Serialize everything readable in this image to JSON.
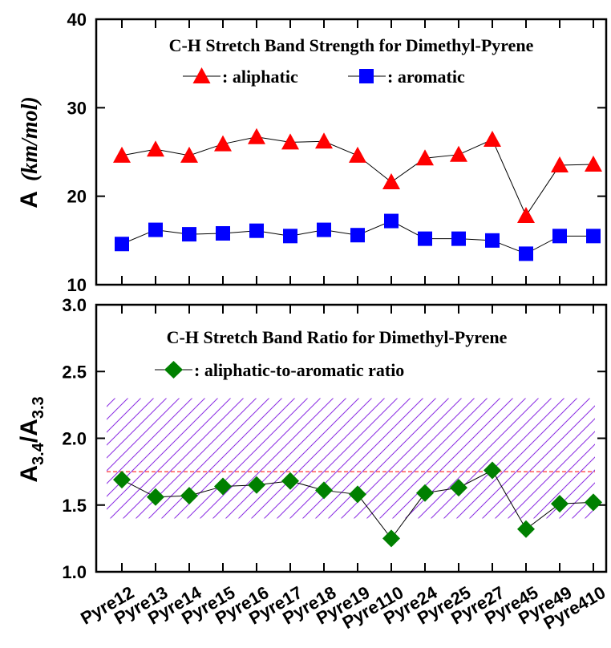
{
  "chart_data": [
    {
      "type": "line",
      "title": "C-H Stretch Band Strength for Dimethyl-Pyrene",
      "ylabel_main": "A",
      "ylabel_unit": "(km/mol)",
      "ylim": [
        10,
        40
      ],
      "yticks": [
        10,
        20,
        30,
        40
      ],
      "series": [
        {
          "name": "aliphatic",
          "legend_text": ": aliphatic",
          "marker": "triangle",
          "color": "#ff0000",
          "values": [
            24.6,
            25.3,
            24.6,
            25.9,
            26.7,
            26.1,
            26.2,
            24.6,
            21.6,
            24.3,
            24.7,
            26.4,
            17.8,
            23.5,
            23.6
          ]
        },
        {
          "name": "aromatic",
          "legend_text": ": aromatic",
          "marker": "square",
          "color": "#0000ff",
          "values": [
            14.6,
            16.2,
            15.7,
            15.8,
            16.1,
            15.5,
            16.2,
            15.6,
            17.2,
            15.2,
            15.2,
            15.0,
            13.5,
            15.5,
            15.5
          ]
        }
      ]
    },
    {
      "type": "line",
      "title": "C-H Stretch Band Ratio for Dimethyl-Pyrene",
      "ylabel": "A3.4/A3.3",
      "ylim": [
        1.0,
        3.0
      ],
      "yticks": [
        "1.0",
        "1.5",
        "2.0",
        "2.5",
        "3.0"
      ],
      "shaded_band": [
        1.4,
        2.3
      ],
      "shaded_color": "#8a2be2",
      "reference_line": 1.75,
      "reference_color": "#ff0000",
      "series": [
        {
          "name": "aliphatic-to-aromatic ratio",
          "legend_text": ": aliphatic-to-aromatic ratio",
          "marker": "diamond",
          "color": "#008000",
          "values": [
            1.69,
            1.56,
            1.57,
            1.64,
            1.65,
            1.68,
            1.61,
            1.58,
            1.25,
            1.59,
            1.63,
            1.76,
            1.32,
            1.51,
            1.52
          ]
        }
      ]
    }
  ],
  "categories": [
    "Pyre12",
    "Pyre13",
    "Pyre14",
    "Pyre15",
    "Pyre16",
    "Pyre17",
    "Pyre18",
    "Pyre19",
    "Pyre110",
    "Pyre24",
    "Pyre25",
    "Pyre27",
    "Pyre45",
    "Pyre49",
    "Pyre410"
  ],
  "ylabel_bottom_parts": {
    "a1": "A",
    "s1": "3.4",
    "slash": "/A",
    "s2": "3.3"
  }
}
